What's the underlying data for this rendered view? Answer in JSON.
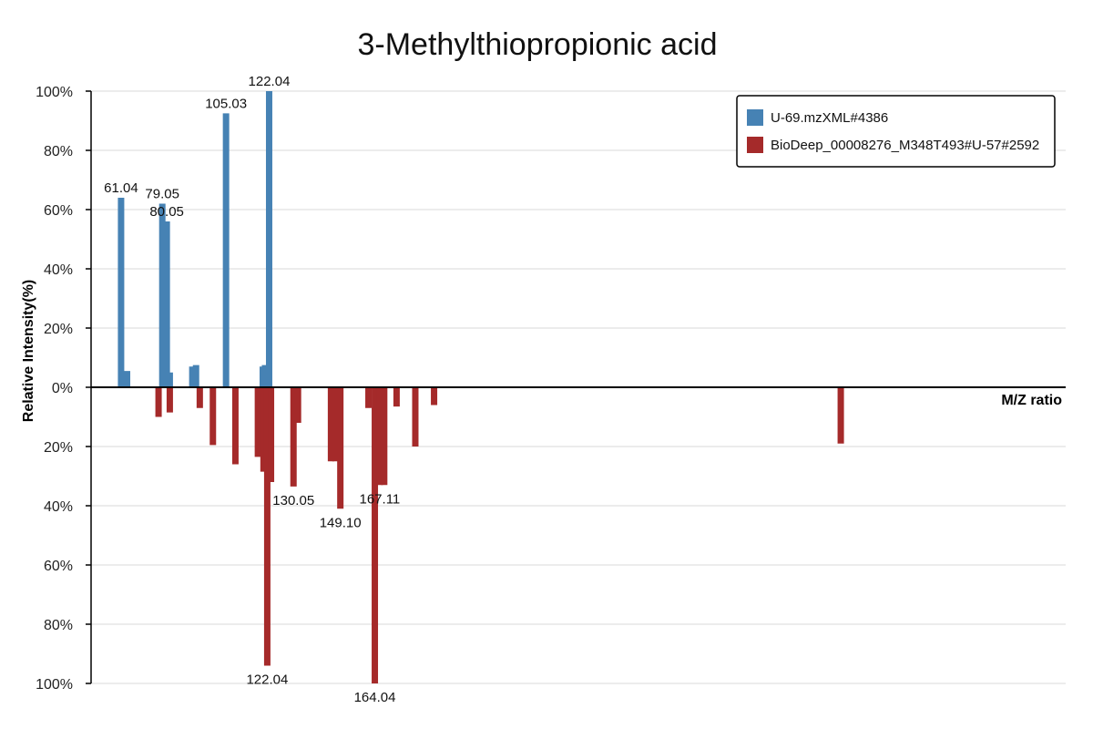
{
  "chart_data": {
    "type": "bar",
    "title": "3-Methylthiopropionic acid",
    "xlabel": "M/Z ratio",
    "ylabel": "Relative Intensity(%)",
    "xlim": [
      50,
      310
    ],
    "ylim": [
      -100,
      100
    ],
    "yticks": [
      {
        "value": 100,
        "label": "100%"
      },
      {
        "value": 80,
        "label": "80%"
      },
      {
        "value": 60,
        "label": "60%"
      },
      {
        "value": 40,
        "label": "40%"
      },
      {
        "value": 20,
        "label": "20%"
      },
      {
        "value": 0,
        "label": "0%"
      },
      {
        "value": -20,
        "label": "20%"
      },
      {
        "value": -40,
        "label": "40%"
      },
      {
        "value": -60,
        "label": "60%"
      },
      {
        "value": -80,
        "label": "80%"
      },
      {
        "value": -100,
        "label": "100%"
      }
    ],
    "grid": true,
    "legend_position": "top-right",
    "series": [
      {
        "name": "U-69.mzXML#4386",
        "color": "#4682b4",
        "direction": "up",
        "points": [
          {
            "x": 58.0,
            "y": 64
          },
          {
            "x": 59.6,
            "y": 5.5
          },
          {
            "x": 69.0,
            "y": 62,
            "label": "79.05"
          },
          {
            "x": 70.2,
            "y": 56,
            "label": "80.05"
          },
          {
            "x": 71.0,
            "y": 5
          },
          {
            "x": 77.0,
            "y": 7
          },
          {
            "x": 78.0,
            "y": 7.5
          },
          {
            "x": 86.0,
            "y": 92.5,
            "label": "105.03"
          },
          {
            "x": 95.8,
            "y": 7
          },
          {
            "x": 96.4,
            "y": 7.5
          },
          {
            "x": 97.5,
            "y": 100,
            "label": "122.04"
          },
          {
            "x": 58.0,
            "y": 64,
            "label": "61.04",
            "label_only": true
          }
        ]
      },
      {
        "name": "BioDeep_00008276_M348T493#U-57#2592",
        "color": "#a52a2a",
        "direction": "down",
        "points": [
          {
            "x": 68.0,
            "y": 10
          },
          {
            "x": 71.0,
            "y": 8.5
          },
          {
            "x": 79.0,
            "y": 7
          },
          {
            "x": 82.5,
            "y": 19.5
          },
          {
            "x": 88.5,
            "y": 26
          },
          {
            "x": 94.5,
            "y": 23.5
          },
          {
            "x": 96.0,
            "y": 28.5
          },
          {
            "x": 97.0,
            "y": 94,
            "label": "122.04"
          },
          {
            "x": 98.0,
            "y": 32
          },
          {
            "x": 104.0,
            "y": 33.5,
            "label": "130.05"
          },
          {
            "x": 105.2,
            "y": 12
          },
          {
            "x": 114.0,
            "y": 25
          },
          {
            "x": 115.2,
            "y": 25
          },
          {
            "x": 116.5,
            "y": 41,
            "label": "149.10"
          },
          {
            "x": 124.0,
            "y": 7
          },
          {
            "x": 125.7,
            "y": 100,
            "label": "164.04"
          },
          {
            "x": 127.0,
            "y": 33,
            "label": "167.11"
          },
          {
            "x": 128.2,
            "y": 33
          },
          {
            "x": 131.5,
            "y": 6.5
          },
          {
            "x": 136.5,
            "y": 20
          },
          {
            "x": 141.5,
            "y": 6
          },
          {
            "x": 250.0,
            "y": 19
          }
        ]
      }
    ]
  }
}
